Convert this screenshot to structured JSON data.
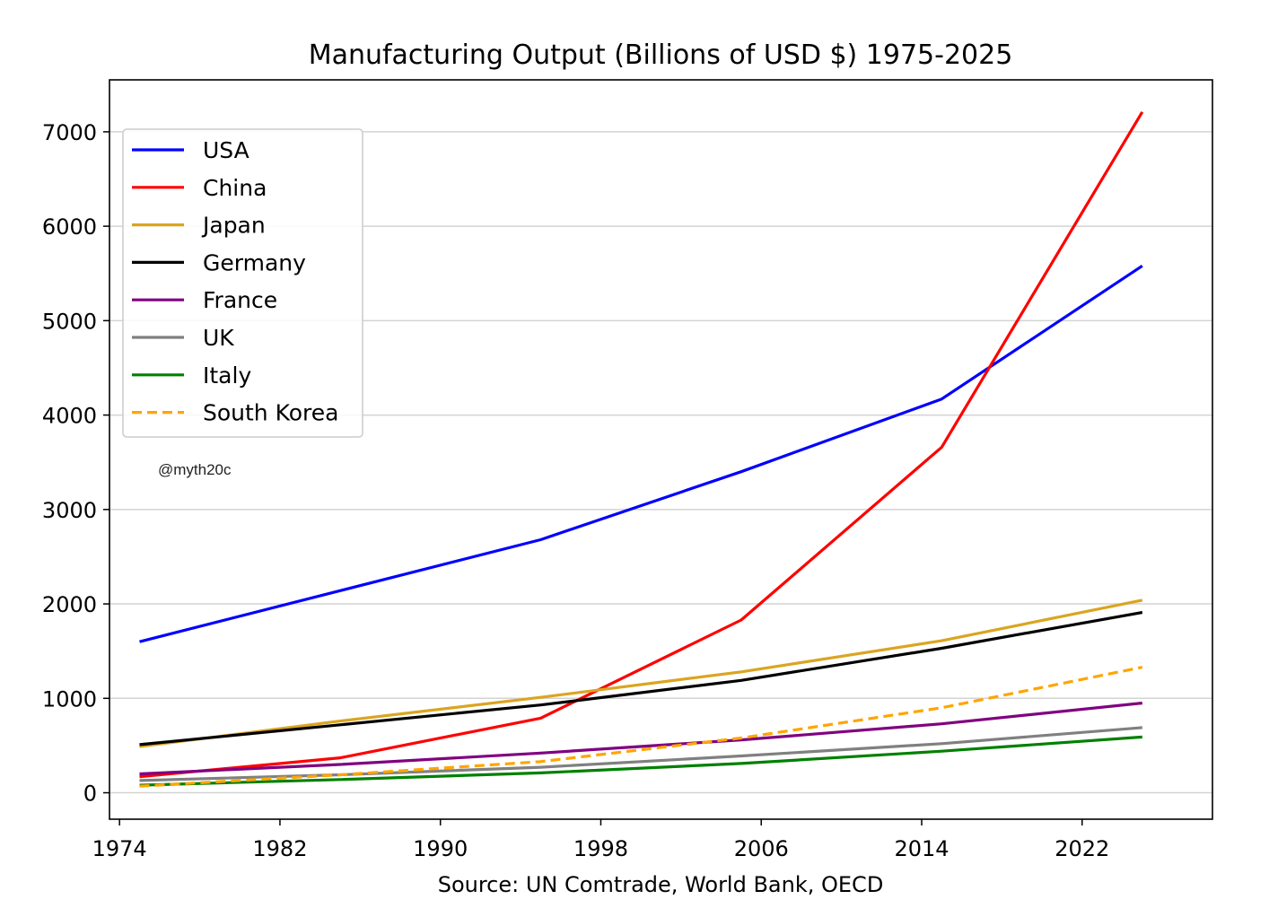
{
  "chart_data": {
    "type": "line",
    "title": "Manufacturing Output (Billions of USD $) 1975-2025",
    "xlabel": "Source: UN Comtrade, World Bank, OECD",
    "ylabel": "",
    "xlim": [
      1973.5,
      2028.5
    ],
    "ylim": [
      -280,
      7550
    ],
    "xticks": [
      1974,
      1982,
      1990,
      1998,
      2006,
      2014,
      2022
    ],
    "yticks": [
      0,
      1000,
      2000,
      3000,
      4000,
      5000,
      6000,
      7000
    ],
    "grid": "horizontal",
    "legend": "upper-left",
    "annotation": "@myth20c",
    "x": [
      1975,
      1985,
      1995,
      2005,
      2015,
      2025
    ],
    "series": [
      {
        "name": "USA",
        "color": "#0000ff",
        "style": "solid",
        "values": [
          1600,
          2140,
          2680,
          3400,
          4170,
          5580
        ]
      },
      {
        "name": "China",
        "color": "#ff0000",
        "style": "solid",
        "values": [
          170,
          370,
          790,
          1830,
          3660,
          7210
        ]
      },
      {
        "name": "Japan",
        "color": "#daa520",
        "style": "solid",
        "values": [
          490,
          760,
          1010,
          1280,
          1610,
          2040
        ]
      },
      {
        "name": "Germany",
        "color": "#000000",
        "style": "solid",
        "values": [
          510,
          720,
          930,
          1190,
          1530,
          1910
        ]
      },
      {
        "name": "France",
        "color": "#800080",
        "style": "solid",
        "values": [
          200,
          300,
          420,
          560,
          730,
          950
        ]
      },
      {
        "name": "UK",
        "color": "#808080",
        "style": "solid",
        "values": [
          130,
          190,
          270,
          390,
          520,
          690
        ]
      },
      {
        "name": "Italy",
        "color": "#008000",
        "style": "solid",
        "values": [
          80,
          140,
          210,
          310,
          440,
          590
        ]
      },
      {
        "name": "South Korea",
        "color": "#ffa500",
        "style": "dashed",
        "values": [
          70,
          190,
          330,
          580,
          900,
          1330
        ]
      }
    ]
  }
}
